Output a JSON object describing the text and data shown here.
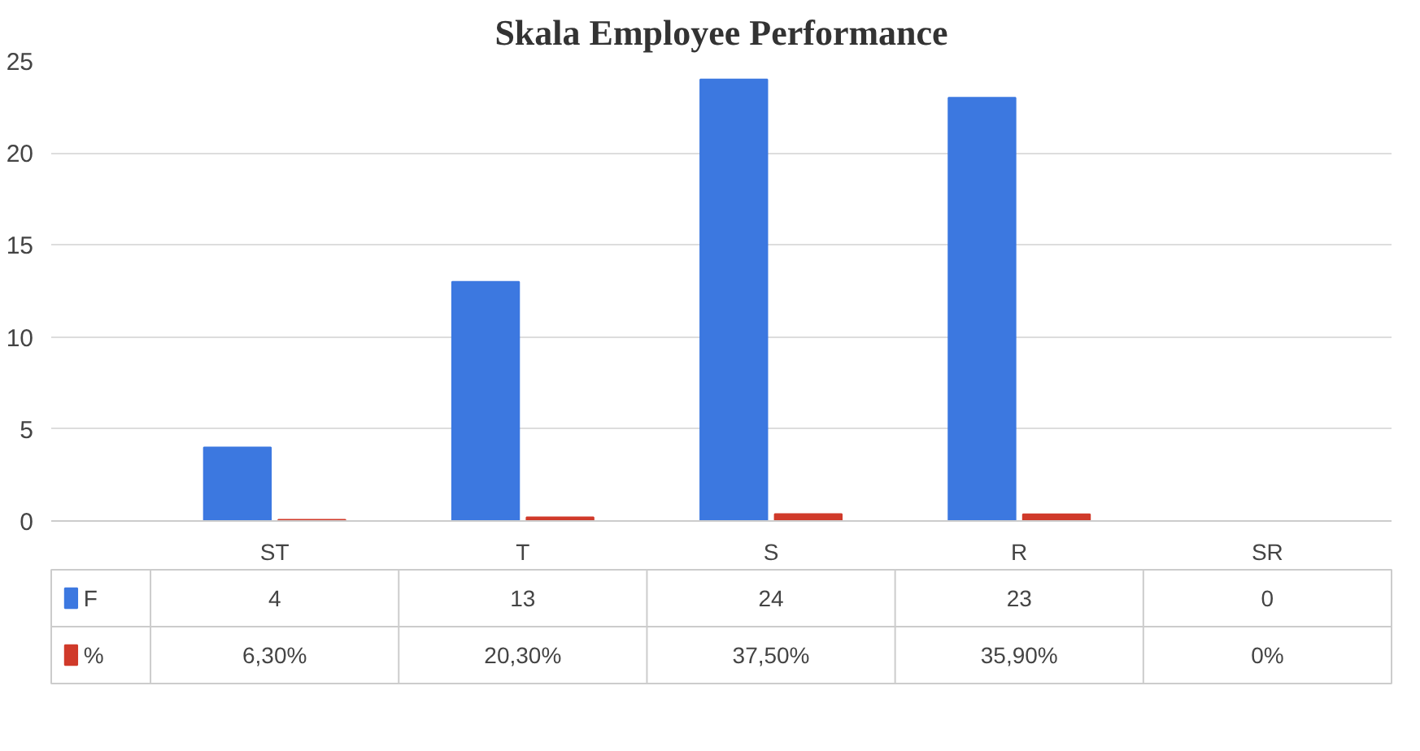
{
  "chart_data": {
    "type": "bar",
    "title": "Skala Employee Performance",
    "categories": [
      "ST",
      "T",
      "S",
      "R",
      "SR"
    ],
    "series": [
      {
        "name": "F",
        "color": "#3c78e0",
        "values": [
          4,
          13,
          24,
          23,
          0
        ],
        "value_labels": [
          "4",
          "13",
          "24",
          "23",
          "0"
        ]
      },
      {
        "name": "%",
        "color": "#d03a2a",
        "values": [
          0.063,
          0.203,
          0.375,
          0.359,
          0
        ],
        "value_labels": [
          "6,30%",
          "20,30%",
          "37,50%",
          "35,90%",
          "0%"
        ]
      }
    ],
    "ylim": [
      0,
      25
    ],
    "yticks": [
      0,
      5,
      10,
      15,
      20,
      25
    ],
    "grid": "y",
    "legend": "bottom"
  }
}
